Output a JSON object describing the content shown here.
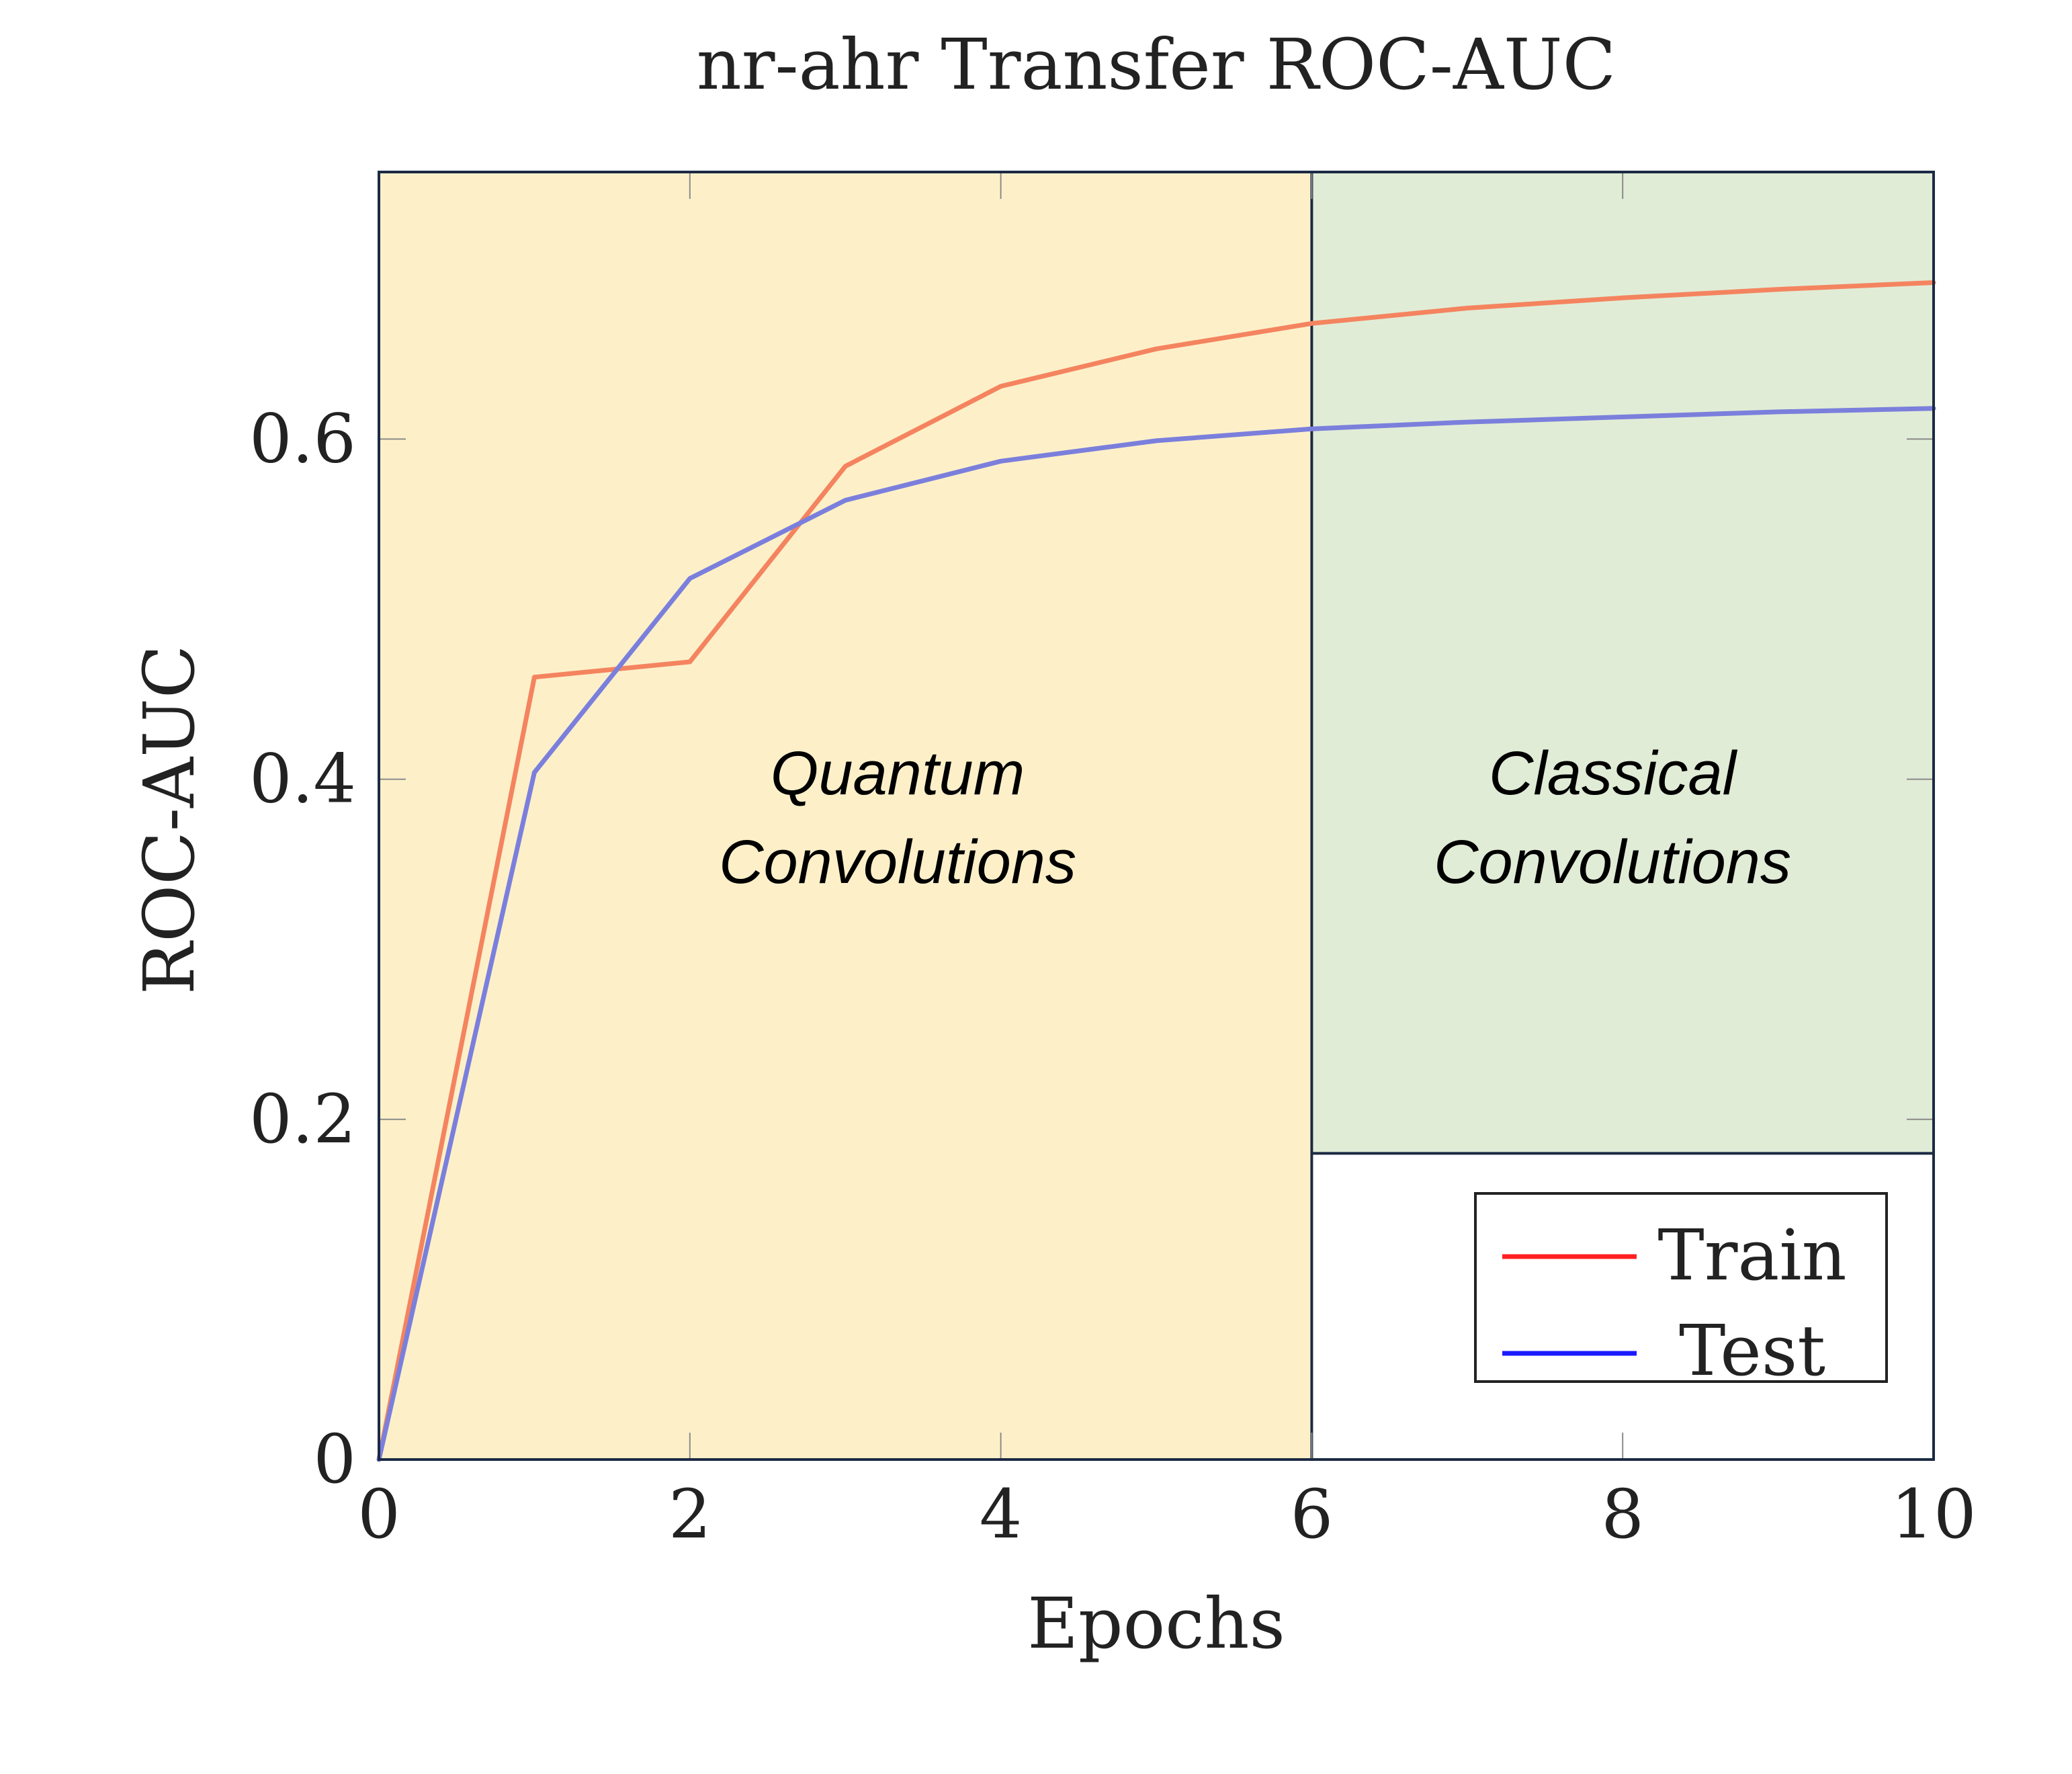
{
  "chart_data": {
    "type": "line",
    "title": "nr-ahr Transfer ROC-AUC",
    "xlabel": "Epochs",
    "ylabel": "ROC-AUC",
    "xlim": [
      0,
      10
    ],
    "ylim": [
      0,
      0.757
    ],
    "xticks": [
      0,
      2,
      4,
      6,
      8,
      10
    ],
    "xtick_labels": [
      "0",
      "2",
      "4",
      "6",
      "8",
      "10"
    ],
    "yticks": [
      0,
      0.2,
      0.4,
      0.6
    ],
    "ytick_labels": [
      "0",
      "0.2",
      "0.4",
      "0.6"
    ],
    "grid": false,
    "regions": [
      {
        "label_line1": "Quantum",
        "label_line2": "Convolutions",
        "x_from": 0,
        "x_to": 6,
        "color": "#fdf0c9"
      },
      {
        "label_line1": "Classical",
        "label_line2": "Convolutions",
        "x_from": 6,
        "x_to": 10,
        "y_from": 0.18,
        "color": "#e1ecd6"
      }
    ],
    "series": [
      {
        "name": "Train",
        "color": "#f4845f",
        "legend_color": "#ff2020",
        "x": [
          0,
          1,
          2,
          3,
          4,
          5,
          6,
          7,
          8,
          9,
          10
        ],
        "values": [
          0,
          0.46,
          0.469,
          0.584,
          0.631,
          0.653,
          0.668,
          0.677,
          0.683,
          0.688,
          0.692
        ]
      },
      {
        "name": "Test",
        "color": "#7b7fdc",
        "legend_color": "#1a1aff",
        "x": [
          0,
          1,
          2,
          3,
          4,
          5,
          6,
          7,
          8,
          9,
          10
        ],
        "values": [
          0,
          0.404,
          0.518,
          0.564,
          0.587,
          0.599,
          0.606,
          0.61,
          0.613,
          0.616,
          0.618
        ]
      }
    ],
    "legend_position": "bottom-right"
  }
}
